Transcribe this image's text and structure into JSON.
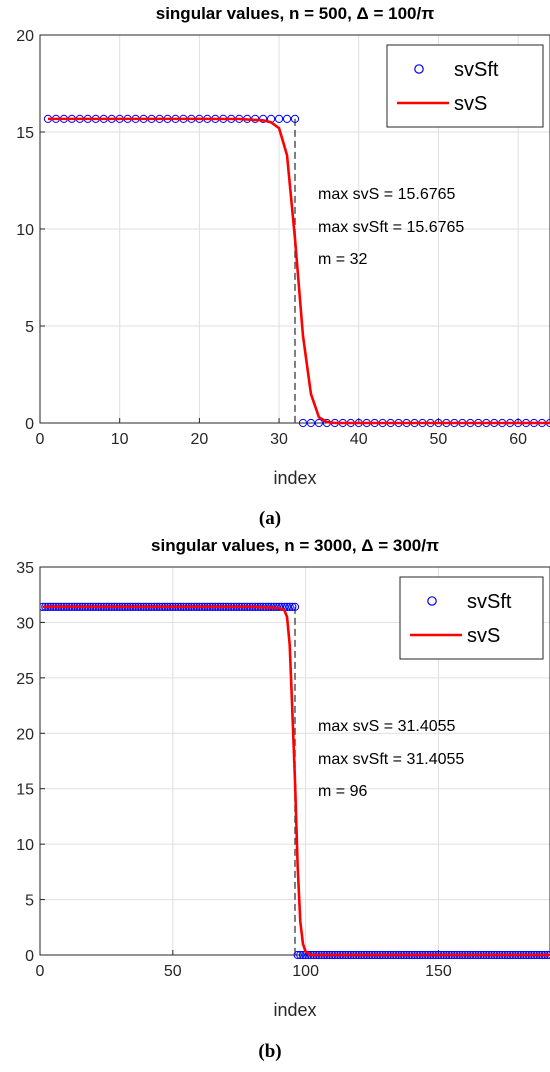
{
  "chart_data": [
    {
      "type": "scatter+line",
      "title": "singular values, n = 500, Δ = 100/π",
      "xlabel": "index",
      "ylabel": "",
      "xlim": [
        0,
        64
      ],
      "ylim": [
        0,
        20
      ],
      "xticks": [
        0,
        10,
        20,
        30,
        40,
        50,
        60
      ],
      "yticks": [
        0,
        5,
        10,
        15,
        20
      ],
      "grid": true,
      "legend": {
        "placement": "top-right",
        "entries": [
          "svSft",
          "svS"
        ]
      },
      "annotations": [
        "max svS = 15.6765",
        "max svSft = 15.6765",
        "m = 32"
      ],
      "caption": "(a)",
      "m": 32,
      "colors": {
        "svSft": "#0000ff",
        "svS": "#ff0000",
        "m_line": "#555555"
      },
      "series": [
        {
          "name": "svSft",
          "marker": "circle",
          "x": [
            1,
            2,
            3,
            4,
            5,
            6,
            7,
            8,
            9,
            10,
            11,
            12,
            13,
            14,
            15,
            16,
            17,
            18,
            19,
            20,
            21,
            22,
            23,
            24,
            25,
            26,
            27,
            28,
            29,
            30,
            31,
            32,
            33,
            34,
            35,
            36,
            37,
            38,
            39,
            40,
            41,
            42,
            43,
            44,
            45,
            46,
            47,
            48,
            49,
            50,
            51,
            52,
            53,
            54,
            55,
            56,
            57,
            58,
            59,
            60,
            61,
            62,
            63,
            64
          ],
          "y": [
            15.6765,
            15.6765,
            15.6765,
            15.6765,
            15.6765,
            15.6765,
            15.6765,
            15.6765,
            15.6765,
            15.6765,
            15.6765,
            15.6765,
            15.6765,
            15.6765,
            15.6765,
            15.6765,
            15.6765,
            15.6765,
            15.6765,
            15.6765,
            15.6765,
            15.6765,
            15.6765,
            15.6765,
            15.6765,
            15.6765,
            15.6765,
            15.6765,
            15.6765,
            15.6765,
            15.6765,
            15.6765,
            0,
            0,
            0,
            0,
            0,
            0,
            0,
            0,
            0,
            0,
            0,
            0,
            0,
            0,
            0,
            0,
            0,
            0,
            0,
            0,
            0,
            0,
            0,
            0,
            0,
            0,
            0,
            0,
            0,
            0,
            0,
            0
          ]
        },
        {
          "name": "svS",
          "marker": "line",
          "x": [
            1,
            5,
            10,
            15,
            20,
            25,
            28,
            29,
            30,
            31,
            32,
            33,
            34,
            35,
            36,
            37,
            40,
            45,
            50,
            55,
            60,
            64
          ],
          "y": [
            15.6765,
            15.6765,
            15.6765,
            15.6765,
            15.6765,
            15.67,
            15.6,
            15.5,
            15.2,
            13.8,
            9.5,
            4.5,
            1.5,
            0.3,
            0.05,
            0,
            0,
            0,
            0,
            0,
            0,
            0
          ]
        }
      ]
    },
    {
      "type": "scatter+line",
      "title": "singular values, n = 3000, Δ = 300/π",
      "xlabel": "index",
      "ylabel": "",
      "xlim": [
        0,
        192
      ],
      "ylim": [
        0,
        35
      ],
      "xticks": [
        0,
        50,
        100,
        150
      ],
      "yticks": [
        0,
        5,
        10,
        15,
        20,
        25,
        30,
        35
      ],
      "grid": true,
      "legend": {
        "placement": "top-right",
        "entries": [
          "svSft",
          "svS"
        ]
      },
      "annotations": [
        "max svS = 31.4055",
        "max svSft = 31.4055",
        "m = 96"
      ],
      "caption": "(b)",
      "m": 96,
      "colors": {
        "svSft": "#0000ff",
        "svS": "#ff0000",
        "m_line": "#555555"
      },
      "series": [
        {
          "name": "svSft",
          "marker": "circle",
          "x_range": [
            1,
            192
          ],
          "step_at": 96,
          "y_high": 31.4055,
          "y_low": 0
        },
        {
          "name": "svS",
          "marker": "line",
          "x": [
            1,
            20,
            40,
            60,
            80,
            90,
            92,
            93,
            94,
            95,
            96,
            97,
            98,
            99,
            100,
            102,
            110,
            130,
            150,
            170,
            192
          ],
          "y": [
            31.4055,
            31.4055,
            31.4055,
            31.4055,
            31.4055,
            31.3,
            31.1,
            30.5,
            28,
            22,
            15.7,
            8,
            3,
            1,
            0.3,
            0,
            0,
            0,
            0,
            0,
            0
          ]
        }
      ]
    }
  ]
}
